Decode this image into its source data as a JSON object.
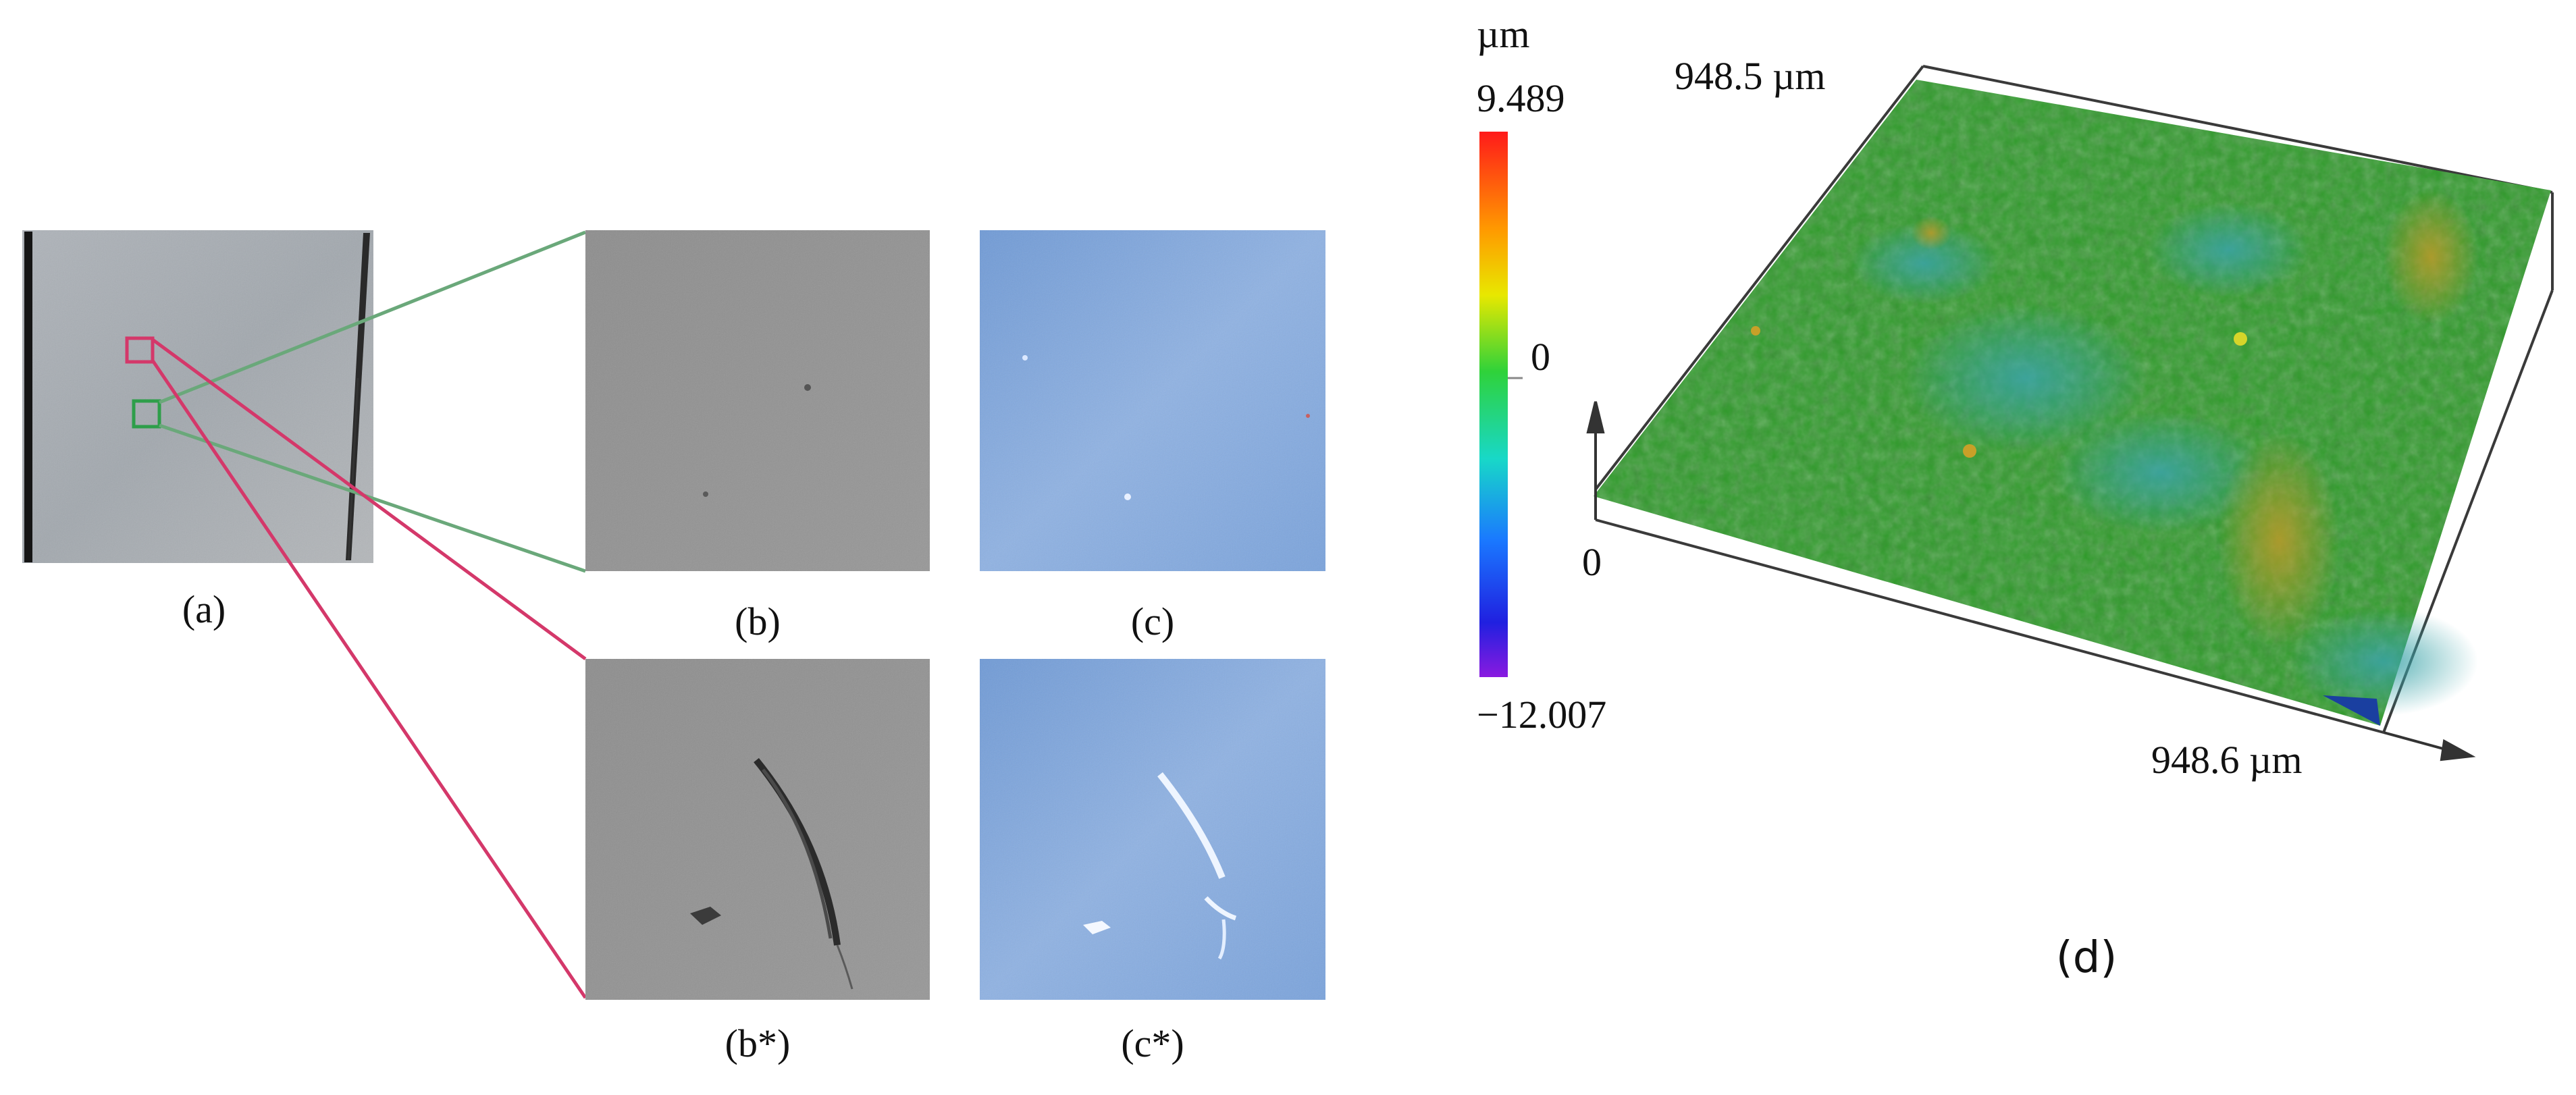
{
  "panels": {
    "a": {
      "label": "(a)"
    },
    "b": {
      "label": "(b)"
    },
    "c": {
      "label": "(c)"
    },
    "b_star": {
      "label": "(b*)"
    },
    "c_star": {
      "label": "(c*)"
    },
    "d": {
      "label": "(d)"
    }
  },
  "colorbar": {
    "unit": "µm",
    "max": "9.489",
    "mid": "0",
    "min": "−12.007"
  },
  "surface3d": {
    "y_extent": "948.5 µm",
    "x_extent": "948.6 µm",
    "origin": "0"
  },
  "colors": {
    "zoom_green": "#2e9e4a",
    "zoom_red": "#d4386a",
    "surface_green": "#2f9a2a",
    "blue_map": "#5a8fd0"
  }
}
